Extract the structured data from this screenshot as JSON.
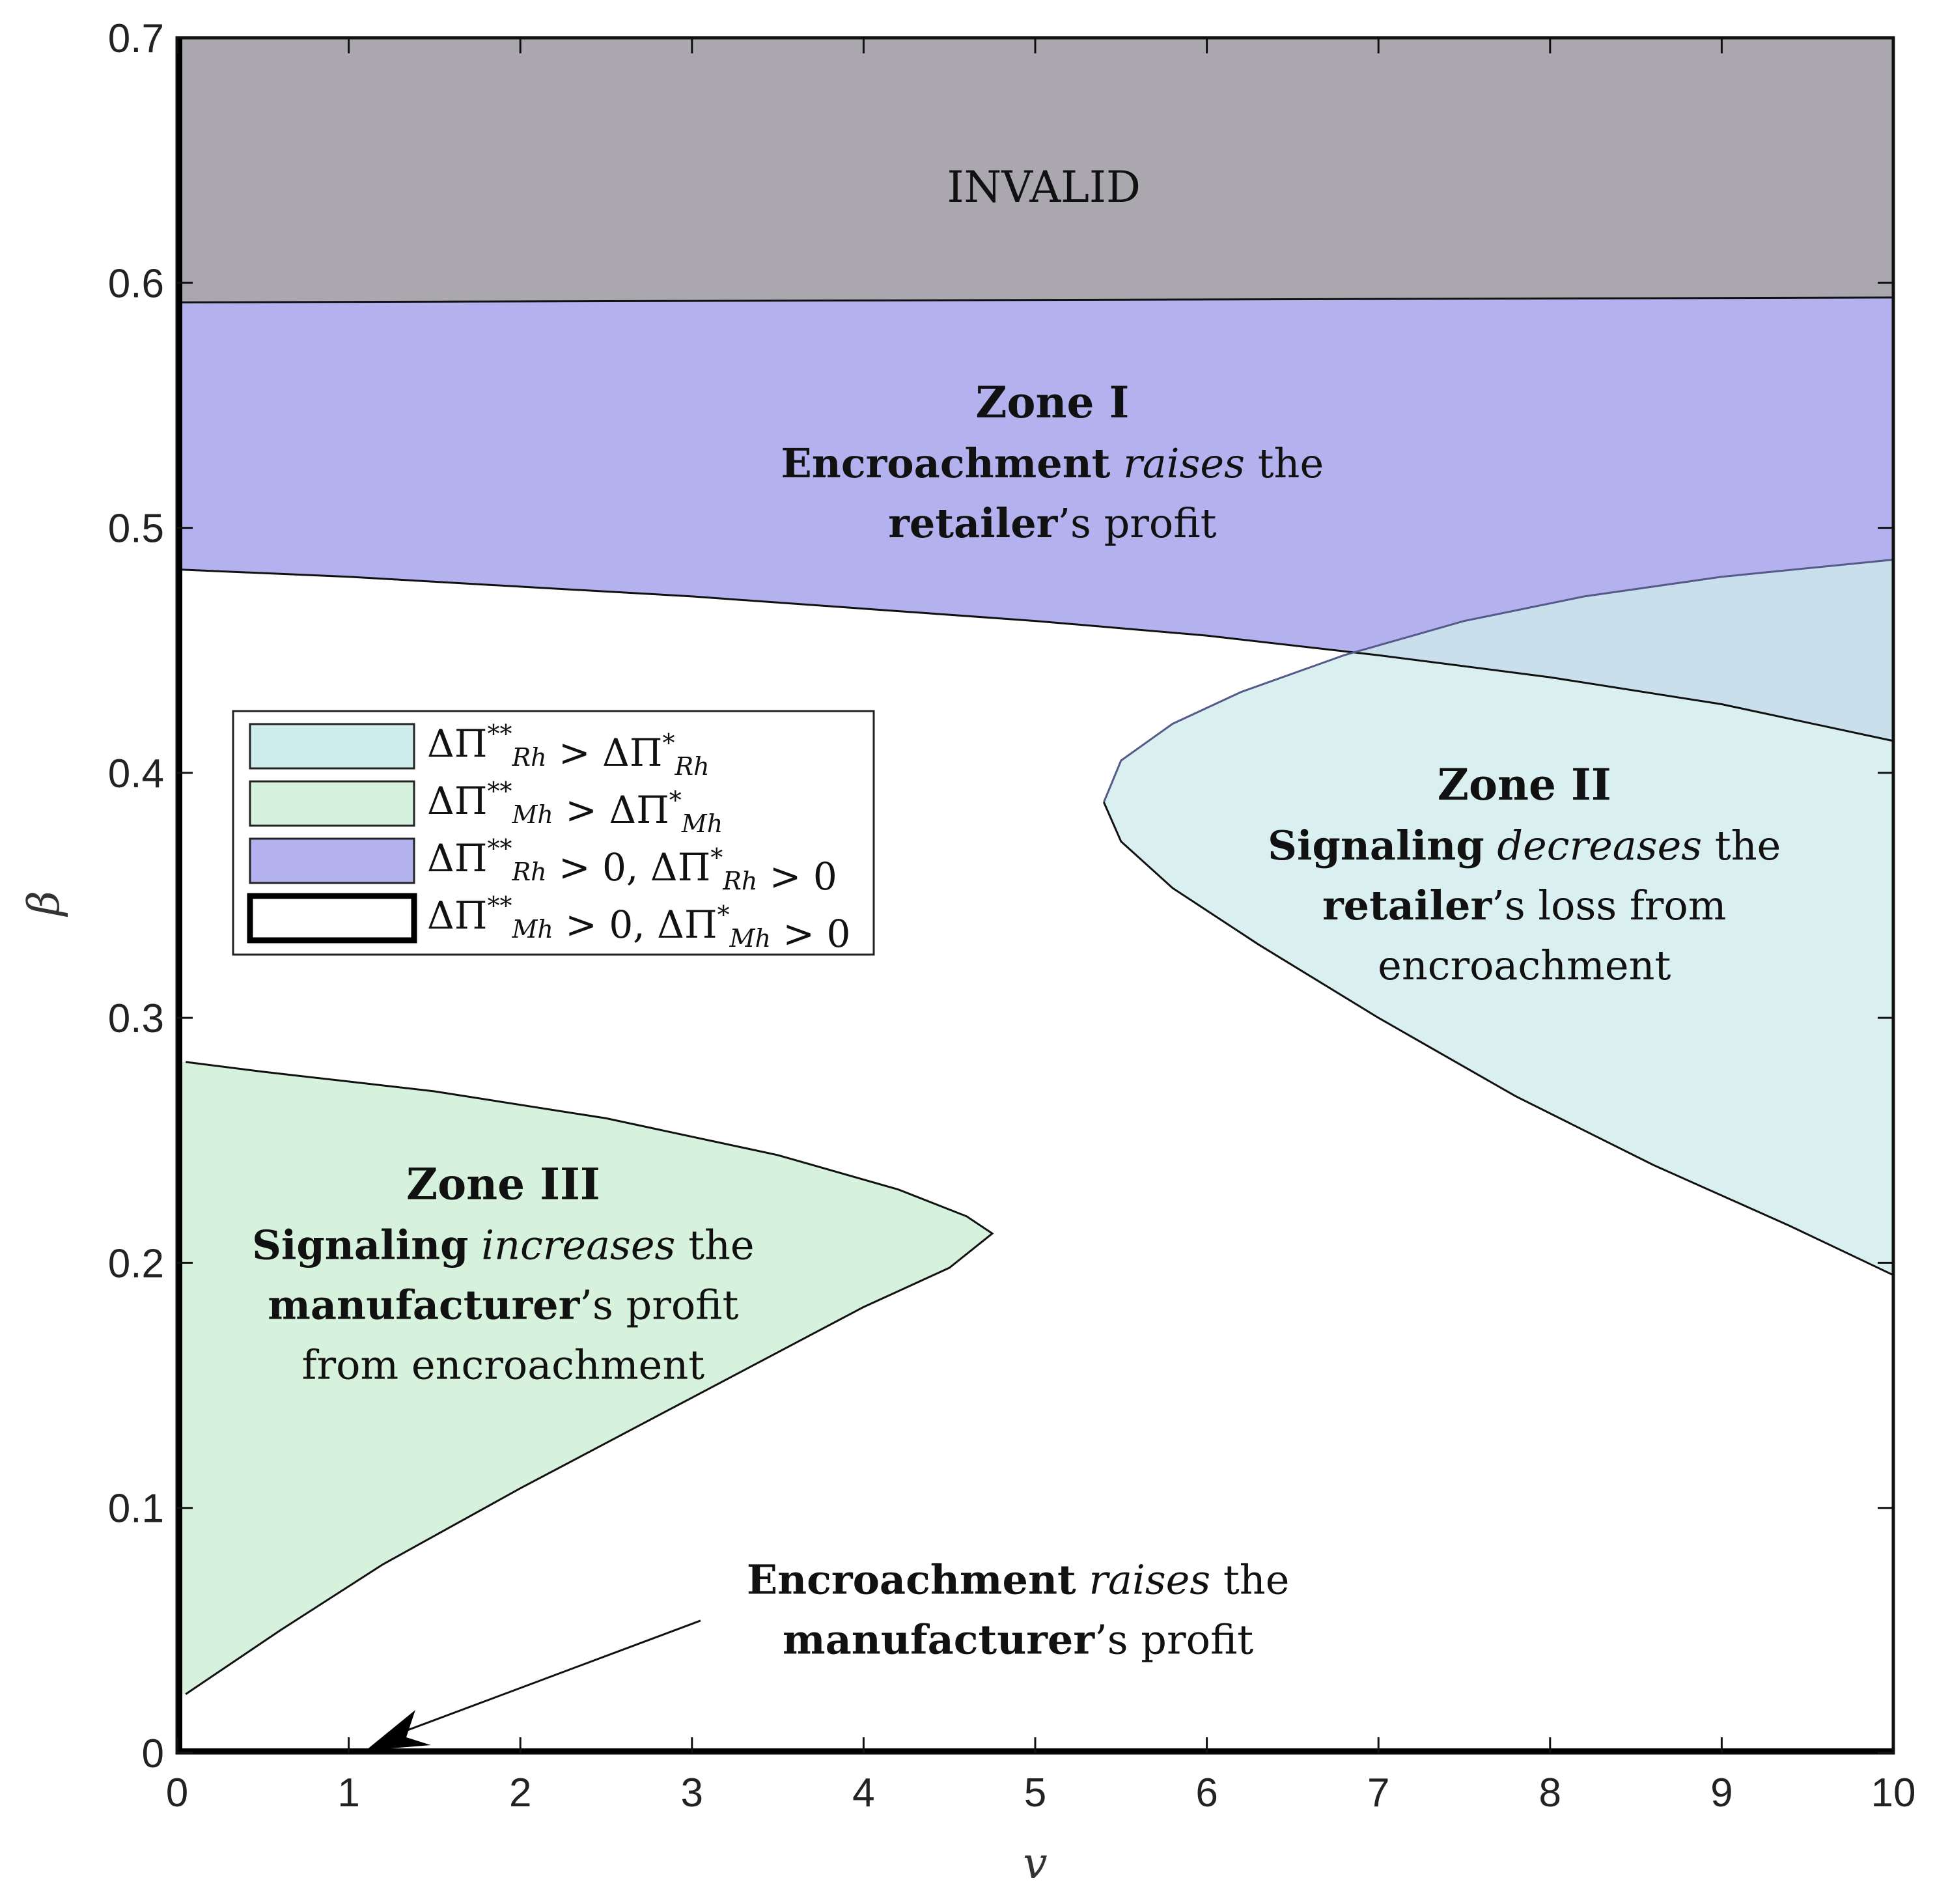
{
  "chart_data": {
    "type": "region",
    "x_label": "v",
    "y_label": "β",
    "xlim": [
      0,
      10
    ],
    "ylim": [
      0,
      0.7
    ],
    "x_ticks": [
      "0",
      "1",
      "2",
      "3",
      "4",
      "5",
      "6",
      "7",
      "8",
      "9",
      "10"
    ],
    "y_ticks": [
      "0",
      "0.1",
      "0.2",
      "0.3",
      "0.4",
      "0.5",
      "0.6",
      "0.7"
    ],
    "colors": {
      "invalid": "#aaa8ae",
      "zone_I": "#b3b2ee",
      "zone_II": "#cfecec",
      "zone_III": "#d6f1dc",
      "overlap": "#a3aaea"
    },
    "boundaries": {
      "invalid_lower": {
        "x": [
          0,
          10
        ],
        "y": [
          0.592,
          0.594
        ]
      },
      "zone_I_lower": {
        "x": [
          0,
          1,
          2,
          3,
          4,
          5,
          6,
          7,
          8,
          9,
          10
        ],
        "y": [
          0.483,
          0.48,
          0.476,
          0.472,
          0.467,
          0.462,
          0.456,
          0.448,
          0.439,
          0.428,
          0.413
        ]
      },
      "zone_II_upper": {
        "x": [
          5.4,
          5.5,
          5.8,
          6.2,
          6.8,
          7.5,
          8.2,
          9.0,
          10
        ],
        "y": [
          0.388,
          0.405,
          0.42,
          0.433,
          0.448,
          0.462,
          0.472,
          0.48,
          0.487
        ]
      },
      "zone_II_lower": {
        "x": [
          5.4,
          5.5,
          5.8,
          6.3,
          7.0,
          7.8,
          8.6,
          9.4,
          10
        ],
        "y": [
          0.388,
          0.372,
          0.353,
          0.33,
          0.3,
          0.268,
          0.24,
          0.215,
          0.195
        ]
      },
      "zone_III_upper": {
        "x": [
          0.05,
          0.5,
          1.5,
          2.5,
          3.5,
          4.2,
          4.6,
          4.75
        ],
        "y": [
          0.282,
          0.278,
          0.27,
          0.259,
          0.244,
          0.23,
          0.219,
          0.212
        ]
      },
      "zone_III_lower": {
        "x": [
          4.75,
          4.5,
          4.0,
          3.0,
          2.0,
          1.2,
          0.6,
          0.05
        ],
        "y": [
          0.212,
          0.198,
          0.182,
          0.145,
          0.108,
          0.077,
          0.05,
          0.024
        ]
      }
    },
    "regions": {
      "invalid": "INVALID",
      "zone_I": {
        "title": "Zone I",
        "lines": [
          [
            {
              "t": "Encroachment",
              "s": "b"
            },
            {
              "t": " ",
              "s": ""
            },
            {
              "t": "raises",
              "s": "i"
            },
            {
              "t": " the",
              "s": ""
            }
          ],
          [
            {
              "t": "retailer",
              "s": "b"
            },
            {
              "t": "’s profit",
              "s": ""
            }
          ]
        ]
      },
      "zone_II": {
        "title": "Zone II",
        "lines": [
          [
            {
              "t": "Signaling",
              "s": "b"
            },
            {
              "t": " ",
              "s": ""
            },
            {
              "t": "decreases",
              "s": "i"
            },
            {
              "t": " the",
              "s": ""
            }
          ],
          [
            {
              "t": "retailer",
              "s": "b"
            },
            {
              "t": "’s loss from",
              "s": ""
            }
          ],
          [
            {
              "t": "encroachment",
              "s": ""
            }
          ]
        ]
      },
      "zone_III": {
        "title": "Zone III",
        "lines": [
          [
            {
              "t": "Signaling",
              "s": "b"
            },
            {
              "t": " ",
              "s": ""
            },
            {
              "t": "increases",
              "s": "i"
            },
            {
              "t": " the",
              "s": ""
            }
          ],
          [
            {
              "t": "manufacturer",
              "s": "b"
            },
            {
              "t": "’s profit",
              "s": ""
            }
          ],
          [
            {
              "t": "from encroachment",
              "s": ""
            }
          ]
        ]
      },
      "bottom_note": {
        "lines": [
          [
            {
              "t": "Encroachment",
              "s": "b"
            },
            {
              "t": " ",
              "s": ""
            },
            {
              "t": "raises",
              "s": "i"
            },
            {
              "t": " the",
              "s": ""
            }
          ],
          [
            {
              "t": "manufacturer",
              "s": "b"
            },
            {
              "t": "’s profit",
              "s": ""
            }
          ]
        ]
      },
      "arrow_target": {
        "x": 1.1,
        "y": 0.0
      }
    },
    "legend": [
      {
        "label": "ΔΠ̄**Rh > ΔΠ̄*Rh",
        "parts": [
          {
            "t": "ΔΠ",
            "s": ""
          },
          {
            "t": "**",
            "s": "sup"
          },
          {
            "t": "Rh",
            "s": "sub"
          },
          {
            "t": " > ΔΠ",
            "s": ""
          },
          {
            "t": "*",
            "s": "sup"
          },
          {
            "t": "Rh",
            "s": "sub"
          }
        ],
        "fill": "#cfecec",
        "stroke": "#222222",
        "bold_border": false
      },
      {
        "label": "ΔΠ**Mh > ΔΠ*Mh",
        "parts": [
          {
            "t": "ΔΠ",
            "s": ""
          },
          {
            "t": "**",
            "s": "sup"
          },
          {
            "t": "Mh",
            "s": "sub"
          },
          {
            "t": " > ΔΠ",
            "s": ""
          },
          {
            "t": "*",
            "s": "sup"
          },
          {
            "t": "Mh",
            "s": "sub"
          }
        ],
        "fill": "#d6f1dc",
        "stroke": "#222222",
        "bold_border": false
      },
      {
        "label": "ΔΠ̄**Rh > 0, ΔΠ̄*Rh > 0",
        "parts": [
          {
            "t": "ΔΠ",
            "s": ""
          },
          {
            "t": "**",
            "s": "sup"
          },
          {
            "t": "Rh",
            "s": "sub"
          },
          {
            "t": " > 0, ΔΠ",
            "s": ""
          },
          {
            "t": "*",
            "s": "sup"
          },
          {
            "t": "Rh",
            "s": "sub"
          },
          {
            "t": " > 0",
            "s": ""
          }
        ],
        "fill": "#b3b2ee",
        "stroke": "#222222",
        "bold_border": false
      },
      {
        "label": "ΔΠ̄**Mh > 0, ΔΠ̄*Mh > 0",
        "parts": [
          {
            "t": "ΔΠ",
            "s": ""
          },
          {
            "t": "**",
            "s": "sup"
          },
          {
            "t": "Mh",
            "s": "sub"
          },
          {
            "t": " > 0, ΔΠ",
            "s": ""
          },
          {
            "t": "*",
            "s": "sup"
          },
          {
            "t": "Mh",
            "s": "sub"
          },
          {
            "t": " > 0",
            "s": ""
          }
        ],
        "fill": "#ffffff",
        "stroke": "#000000",
        "bold_border": true
      }
    ],
    "legend_placement": "middle-left"
  }
}
